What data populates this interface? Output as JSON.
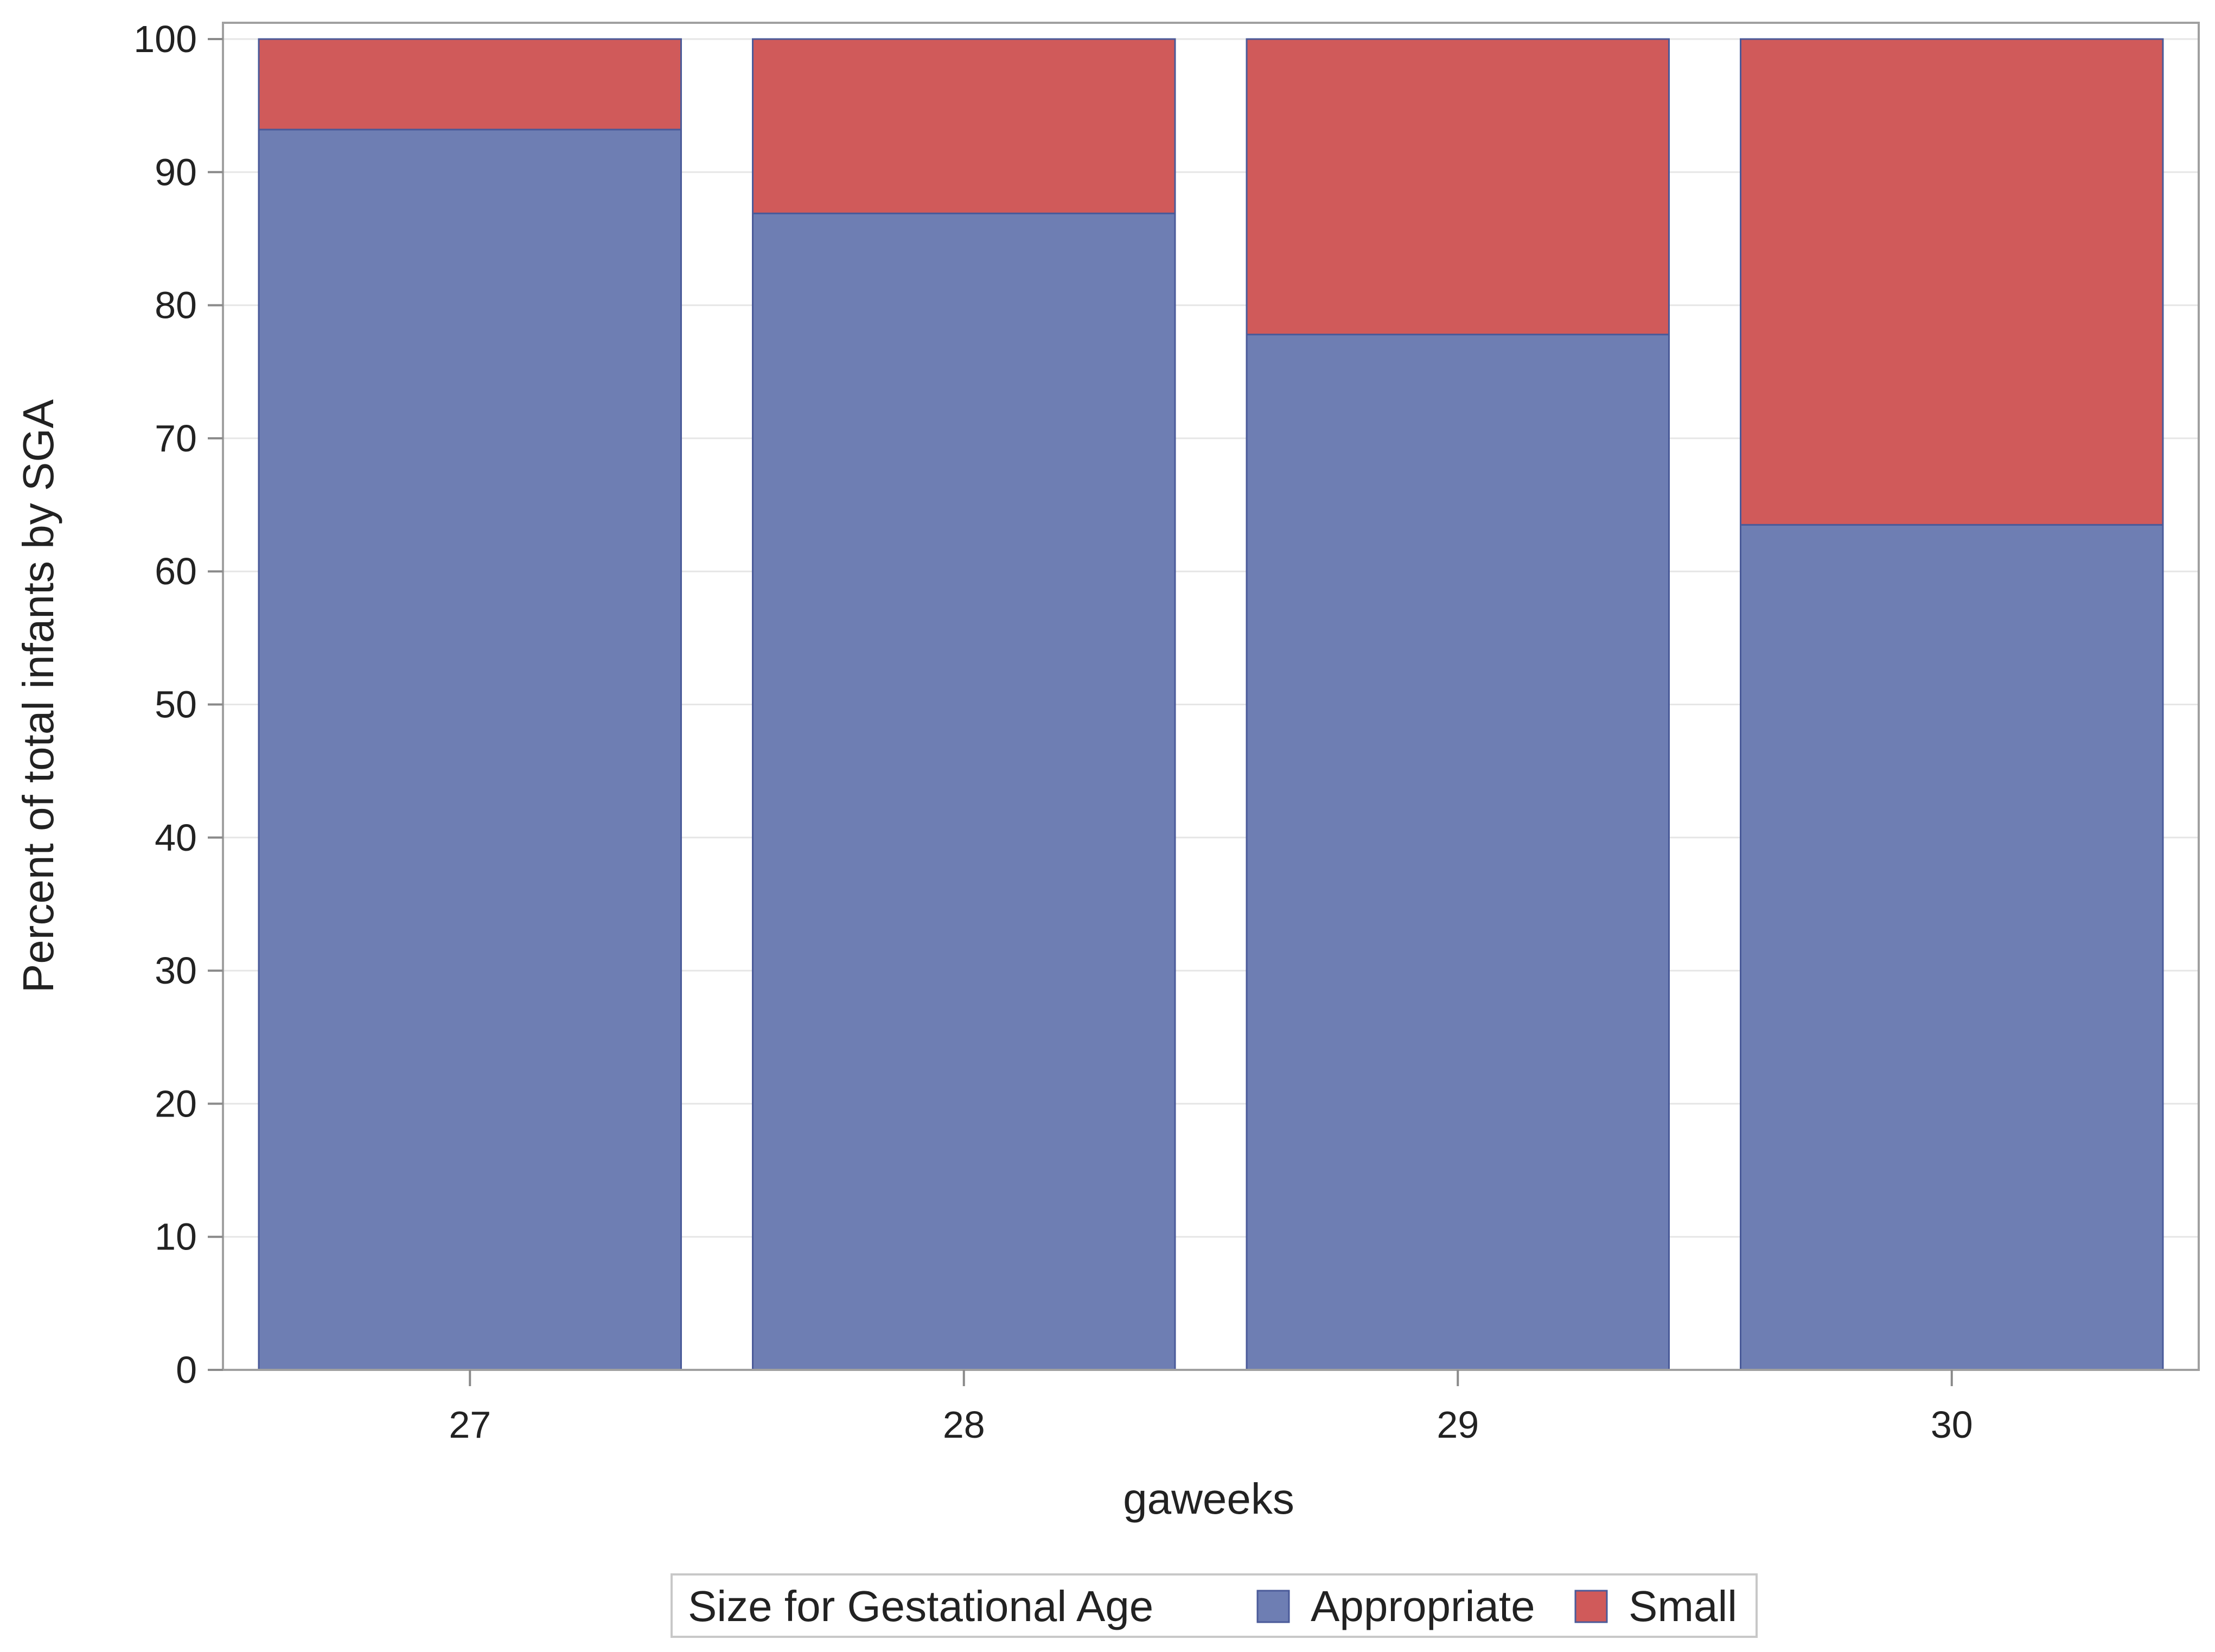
{
  "chart_data": {
    "type": "bar",
    "stacked": true,
    "categories": [
      "27",
      "28",
      "29",
      "30"
    ],
    "series": [
      {
        "name": "Appropriate",
        "values": [
          93.2,
          86.9,
          77.8,
          63.5
        ],
        "color": "#6e7eb3"
      },
      {
        "name": "Small",
        "values": [
          6.8,
          13.1,
          22.2,
          36.5
        ],
        "color": "#d05a5a"
      }
    ],
    "xlabel": "gaweeks",
    "ylabel": "Percent of total infants by SGA",
    "ylim": [
      0,
      100
    ],
    "yticks": [
      0,
      10,
      20,
      30,
      40,
      50,
      60,
      70,
      80,
      90,
      100
    ],
    "grid": true,
    "legend": {
      "title": "Size for Gestational Age",
      "position": "bottom"
    }
  }
}
